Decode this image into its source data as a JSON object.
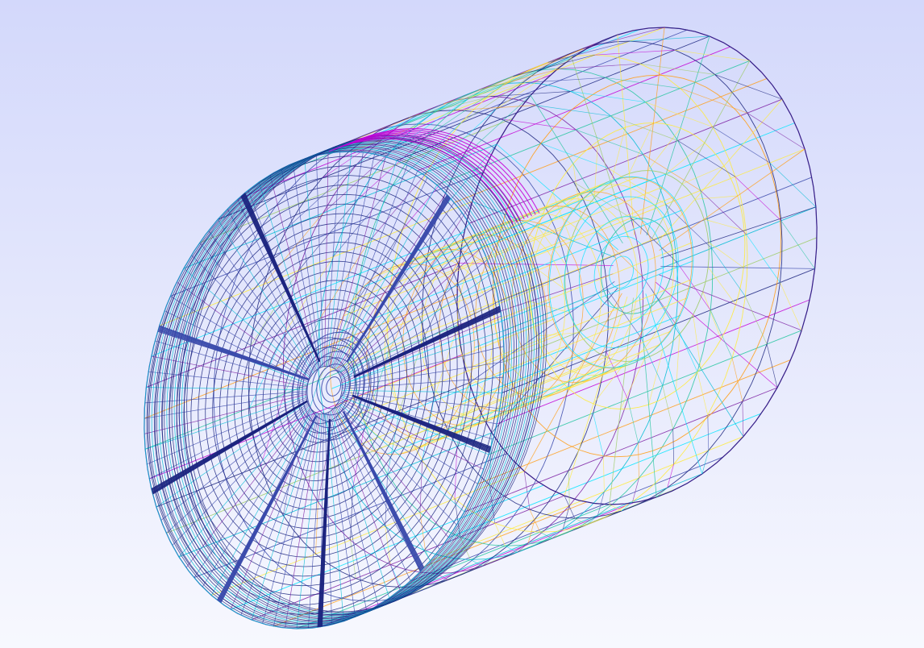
{
  "viewer": {
    "render_mode": "wireframe",
    "background": {
      "top": "#d3d8fb",
      "bottom": "#f7f8fe"
    },
    "mesh_palette": [
      "#1a237e",
      "#3949ab",
      "#7b1fa2",
      "#c300d6",
      "#00bcd4",
      "#00e5ff",
      "#26c6a0",
      "#9ccc65",
      "#ffeb3b",
      "#ff9f1a"
    ],
    "model": {
      "shape": "cylindrical-mesh",
      "visible_text": []
    }
  }
}
